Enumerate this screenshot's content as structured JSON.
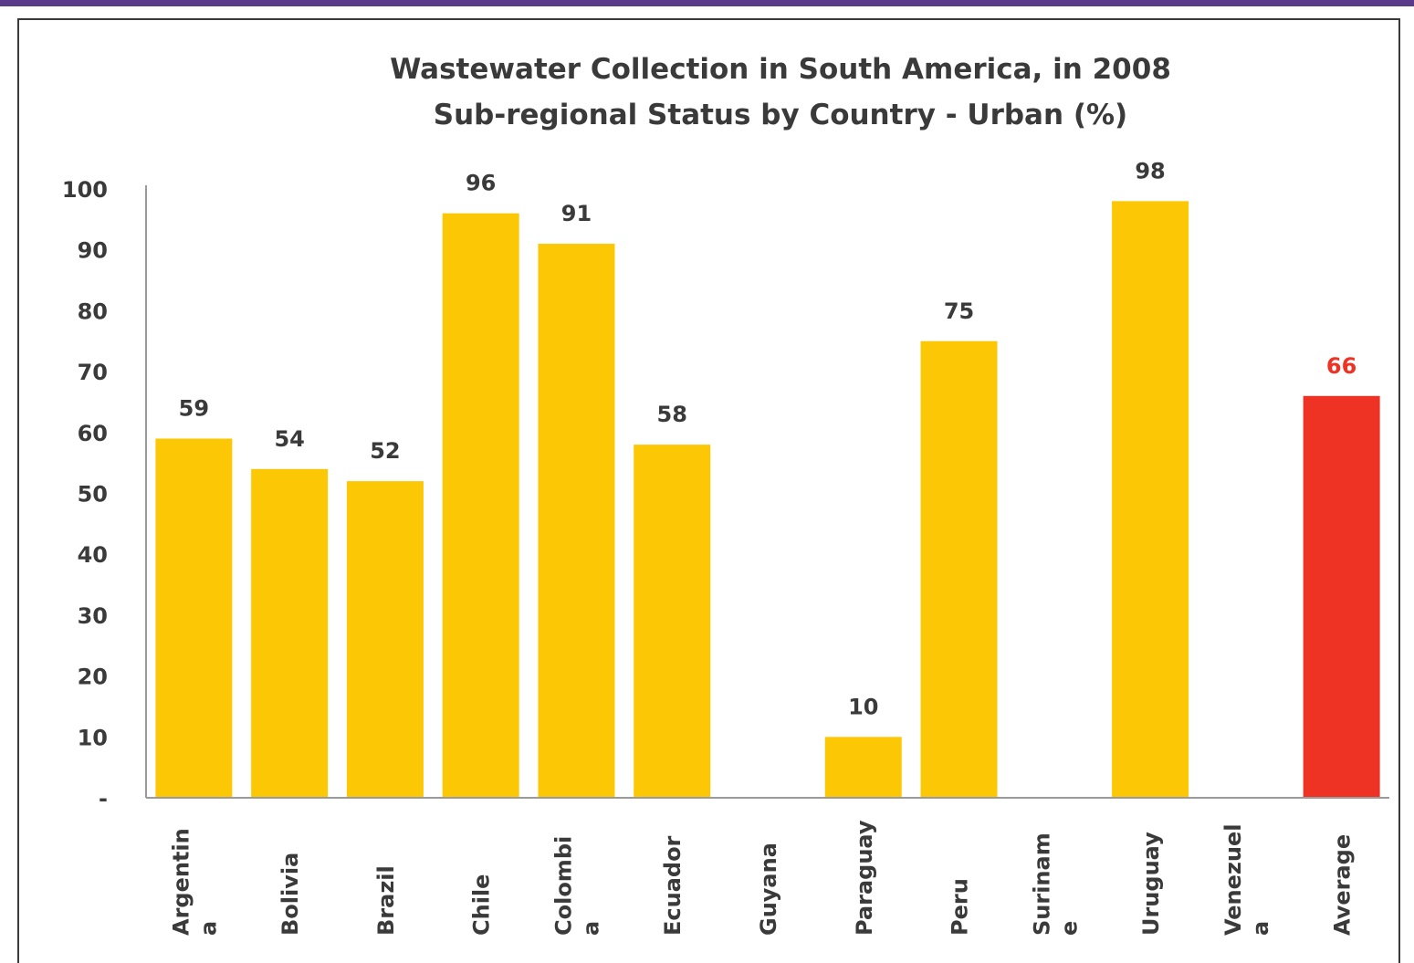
{
  "chart_data": {
    "type": "bar",
    "title": "Wastewater Collection in South America, in 2008",
    "subtitle": "Sub-regional Status by Country - Urban (%)",
    "xlabel": "",
    "ylabel": "",
    "ylim": [
      0,
      100
    ],
    "yticks": [
      "-",
      "10",
      "20",
      "30",
      "40",
      "50",
      "60",
      "70",
      "80",
      "90",
      "100"
    ],
    "categories": [
      [
        "Argentin",
        "a"
      ],
      [
        "Bolivia"
      ],
      [
        "Brazil"
      ],
      [
        "Chile"
      ],
      [
        "Colombi",
        "a"
      ],
      [
        "Ecuador"
      ],
      [
        "Guyana"
      ],
      [
        "Paraguay"
      ],
      [
        "Peru"
      ],
      [
        "Surinam",
        "e"
      ],
      [
        "Uruguay"
      ],
      [
        "Venezuel",
        "a"
      ],
      [
        "Average"
      ]
    ],
    "values": [
      59,
      54,
      52,
      96,
      91,
      58,
      null,
      10,
      75,
      null,
      98,
      null,
      66
    ],
    "bar_color": "#fcc805",
    "highlight_color": "#ee3224",
    "highlight_index": 12,
    "grid": false,
    "legend": "none"
  }
}
